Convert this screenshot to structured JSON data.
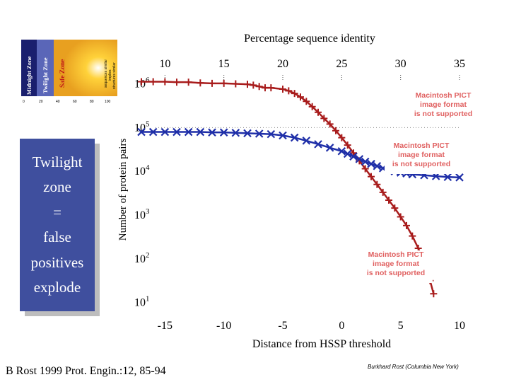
{
  "chart_data": {
    "type": "line",
    "title": "Percentage sequence identity",
    "xlabel": "Distance from HSSP threshold",
    "ylabel": "Number of protein pairs",
    "xlim": [
      -17,
      10
    ],
    "y_log_exponent_lim": [
      0.8,
      6.3
    ],
    "x_ticks": [
      "-15",
      "-10",
      "-5",
      "0",
      "5",
      "10"
    ],
    "x_tick_values": [
      -15,
      -10,
      -5,
      0,
      5,
      10
    ],
    "top_axis_ticks": [
      "10",
      "15",
      "20",
      "25",
      "30",
      "35"
    ],
    "top_axis_tick_values": [
      -15,
      -10,
      -5,
      0,
      5,
      10
    ],
    "y_ticks": [
      {
        "base": "10",
        "exp": "6",
        "value_exp": 6
      },
      {
        "base": "10",
        "exp": "5",
        "value_exp": 5
      },
      {
        "base": "10",
        "exp": "4",
        "value_exp": 4
      },
      {
        "base": "10",
        "exp": "3",
        "value_exp": 3
      },
      {
        "base": "10",
        "exp": "2",
        "value_exp": 2
      },
      {
        "base": "10",
        "exp": "1",
        "value_exp": 1
      }
    ],
    "series": [
      {
        "name": "red curve (+ markers)",
        "color": "#a81c1c",
        "marker": "plus",
        "points": [
          [
            -17.0,
            6.05
          ],
          [
            -16.0,
            6.05
          ],
          [
            -15.0,
            6.05
          ],
          [
            -14.0,
            6.04
          ],
          [
            -13.0,
            6.04
          ],
          [
            -12.0,
            6.02
          ],
          [
            -11.0,
            6.01
          ],
          [
            -10.0,
            6.01
          ],
          [
            -9.0,
            6.0
          ],
          [
            -8.0,
            5.99
          ],
          [
            -7.5,
            5.97
          ],
          [
            -7.0,
            5.94
          ],
          [
            -6.5,
            5.91
          ],
          [
            -6.0,
            5.91
          ],
          [
            -5.0,
            5.88
          ],
          [
            -4.5,
            5.84
          ],
          [
            -4.0,
            5.78
          ],
          [
            -3.5,
            5.7
          ],
          [
            -3.0,
            5.6
          ],
          [
            -2.5,
            5.48
          ],
          [
            -2.0,
            5.35
          ],
          [
            -1.5,
            5.21
          ],
          [
            -1.0,
            5.08
          ],
          [
            -0.5,
            4.93
          ],
          [
            0.0,
            4.77
          ],
          [
            0.5,
            4.6
          ],
          [
            1.0,
            4.42
          ],
          [
            1.5,
            4.24
          ],
          [
            2.0,
            4.06
          ],
          [
            2.5,
            3.88
          ],
          [
            3.0,
            3.7
          ],
          [
            3.5,
            3.52
          ],
          [
            4.0,
            3.34
          ],
          [
            4.5,
            3.16
          ],
          [
            5.0,
            2.96
          ],
          [
            5.5,
            2.76
          ],
          [
            6.0,
            2.52
          ],
          [
            6.5,
            2.24
          ],
          [
            7.0,
            1.9
          ],
          [
            7.5,
            1.5
          ],
          [
            7.8,
            1.2
          ]
        ]
      },
      {
        "name": "blue curve (x markers)",
        "color": "#1f2fa8",
        "marker": "cross",
        "points": [
          [
            -17.0,
            4.9
          ],
          [
            -16.0,
            4.9
          ],
          [
            -15.0,
            4.9
          ],
          [
            -14.0,
            4.9
          ],
          [
            -13.0,
            4.9
          ],
          [
            -12.0,
            4.9
          ],
          [
            -11.0,
            4.89
          ],
          [
            -10.0,
            4.89
          ],
          [
            -9.0,
            4.88
          ],
          [
            -8.0,
            4.87
          ],
          [
            -7.0,
            4.86
          ],
          [
            -6.0,
            4.85
          ],
          [
            -5.0,
            4.82
          ],
          [
            -4.0,
            4.77
          ],
          [
            -3.0,
            4.7
          ],
          [
            -2.0,
            4.62
          ],
          [
            -1.0,
            4.54
          ],
          [
            0.0,
            4.46
          ],
          [
            0.5,
            4.4
          ],
          [
            1.0,
            4.34
          ],
          [
            1.5,
            4.28
          ],
          [
            2.0,
            4.22
          ],
          [
            2.5,
            4.17
          ],
          [
            3.0,
            4.12
          ],
          [
            3.5,
            4.07
          ],
          [
            4.0,
            4.03
          ],
          [
            4.5,
            4.0
          ],
          [
            5.0,
            3.97
          ],
          [
            5.5,
            3.95
          ],
          [
            6.0,
            3.93
          ],
          [
            7.0,
            3.91
          ],
          [
            8.0,
            3.89
          ],
          [
            9.0,
            3.87
          ],
          [
            10.0,
            3.86
          ]
        ]
      }
    ],
    "grid": false
  },
  "zone_box": {
    "lines": [
      "Twilight",
      "zone",
      "=",
      "false",
      "positives",
      "explode"
    ]
  },
  "thumbnail": {
    "zones": [
      "Midnight Zone",
      "Twilight Zone",
      "Safe Zone"
    ],
    "legend_lines": [
      "sequences similar",
      "implies",
      "structures similar"
    ],
    "axis_ticks": [
      "0",
      "20",
      "40",
      "60",
      "80",
      "100"
    ]
  },
  "placeholders": [
    {
      "lines": [
        "Macintosh PICT",
        "image format",
        "is not supported"
      ]
    },
    {
      "lines": [
        "Macintosh PICT",
        "image format",
        "is not supported"
      ]
    },
    {
      "lines": [
        "Macintosh PICT",
        "image format",
        "is not supported"
      ]
    }
  ],
  "citation": "B Rost 1999 Prot. Engin.:12, 85-94",
  "credit": "Burkhard Rost (Columbia New York)"
}
